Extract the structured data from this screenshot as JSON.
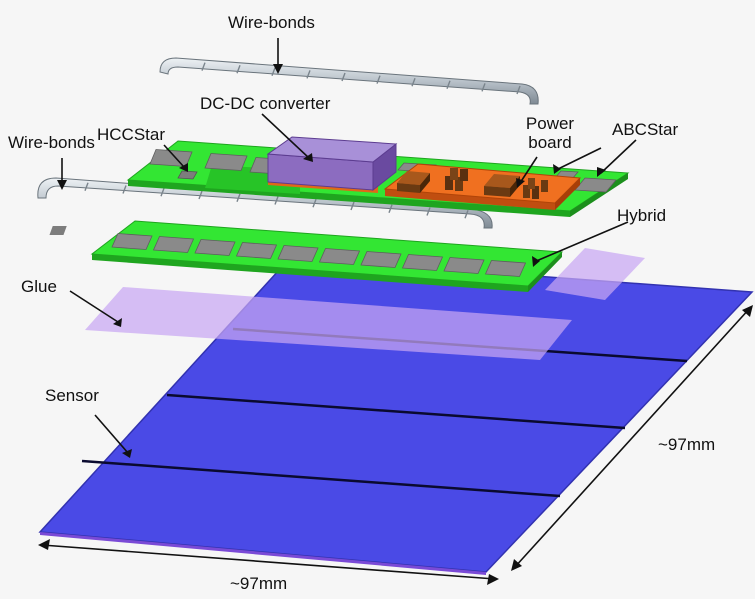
{
  "labels": {
    "wirebonds_top": "Wire-bonds",
    "wirebonds_left": "Wire-bonds",
    "dcdc": "DC-DC converter",
    "hccstar": "HCCStar",
    "power_board_line1": "Power",
    "power_board_line2": "board",
    "abcstar": "ABCStar",
    "hybrid": "Hybrid",
    "glue": "Glue",
    "sensor": "Sensor",
    "dim_right": "~97mm",
    "dim_bottom": "~97mm"
  },
  "colors": {
    "sensor": "#4a4ae6",
    "glue": "#c9a8f0",
    "hybrid_board": "#2ee62e",
    "asic": "#8a8a8a",
    "power_board": "#f07020",
    "dcdc": "#9878c8",
    "wirebond": "#b8c0c8",
    "component": "#6a3a12"
  }
}
